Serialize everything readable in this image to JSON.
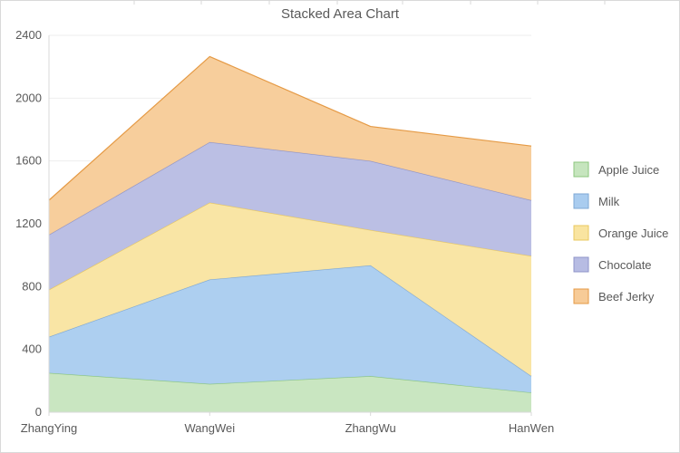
{
  "chart_data": {
    "type": "area",
    "stacked": true,
    "title": "Stacked Area Chart",
    "xlabel": "",
    "ylabel": "",
    "categories": [
      "ZhangYing",
      "WangWei",
      "ZhangWu",
      "HanWen"
    ],
    "y_ticks": [
      "0",
      "400",
      "800",
      "1200",
      "1600",
      "2000",
      "2400"
    ],
    "ylim": [
      0,
      2400
    ],
    "grid": true,
    "legend_position": "right",
    "series": [
      {
        "name": "Apple Juice",
        "values": [
          250,
          180,
          230,
          125
        ],
        "fill": "#c6e5be",
        "stroke": "#8cc67e"
      },
      {
        "name": "Milk",
        "values": [
          230,
          665,
          705,
          105
        ],
        "fill": "#a9ccef",
        "stroke": "#7ea8d6"
      },
      {
        "name": "Orange Juice",
        "values": [
          300,
          490,
          225,
          765
        ],
        "fill": "#f9e4a0",
        "stroke": "#e9c85f"
      },
      {
        "name": "Chocolate",
        "values": [
          350,
          385,
          440,
          355
        ],
        "fill": "#b7bce3",
        "stroke": "#8f94c8"
      },
      {
        "name": "Beef Jerky",
        "values": [
          220,
          545,
          220,
          345
        ],
        "fill": "#f7cb97",
        "stroke": "#e59a45"
      }
    ]
  }
}
